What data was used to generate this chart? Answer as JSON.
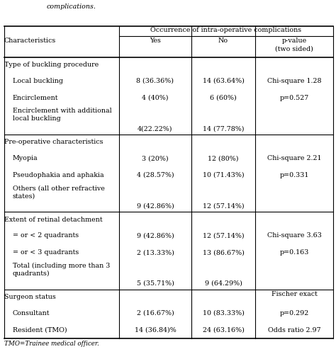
{
  "title_top": "complications.",
  "header1": "Occurrence of intra-operative complications",
  "col_headers_yes": "Yes",
  "col_headers_no": "No",
  "col_headers_pval": "p-value\n(two sided)",
  "row_label_col": "Characteristics",
  "rows": [
    {
      "label": "Type of buckling procedure",
      "indent": 0,
      "yes": "",
      "no": "",
      "pval": "",
      "section_header": true,
      "multiline": false
    },
    {
      "label": "Local buckling",
      "indent": 1,
      "yes": "8 (36.36%)",
      "no": "14 (63.64%)",
      "pval": "Chi-square 1.28",
      "section_header": false,
      "multiline": false
    },
    {
      "label": "Encirclement",
      "indent": 1,
      "yes": "4 (40%)",
      "no": "6 (60%)",
      "pval": "p=0.527",
      "section_header": false,
      "multiline": false
    },
    {
      "label": "Encirclement with additional\nlocal buckling",
      "indent": 1,
      "yes": "4(22.22%)",
      "no": "14 (77.78%)",
      "pval": "",
      "section_header": false,
      "multiline": true
    },
    {
      "label": "Pre-operative characteristics",
      "indent": 0,
      "yes": "",
      "no": "",
      "pval": "",
      "section_header": true,
      "multiline": false
    },
    {
      "label": "Myopia",
      "indent": 1,
      "yes": "3 (20%)",
      "no": "12 (80%)",
      "pval": "Chi-square 2.21",
      "section_header": false,
      "multiline": false
    },
    {
      "label": "Pseudophakia and aphakia",
      "indent": 1,
      "yes": "4 (28.57%)",
      "no": "10 (71.43%)",
      "pval": "p=0.331",
      "section_header": false,
      "multiline": false
    },
    {
      "label": "Others (all other refractive\nstates)",
      "indent": 1,
      "yes": "9 (42.86%)",
      "no": "12 (57.14%)",
      "pval": "",
      "section_header": false,
      "multiline": true
    },
    {
      "label": "Extent of retinal detachment",
      "indent": 0,
      "yes": "",
      "no": "",
      "pval": "",
      "section_header": true,
      "multiline": false
    },
    {
      "label": "= or < 2 quadrants",
      "indent": 1,
      "yes": "9 (42.86%)",
      "no": "12 (57.14%)",
      "pval": "Chi-square 3.63",
      "section_header": false,
      "multiline": false
    },
    {
      "label": "= or < 3 quadrants",
      "indent": 1,
      "yes": "2 (13.33%)",
      "no": "13 (86.67%)",
      "pval": "p=0.163",
      "section_header": false,
      "multiline": false
    },
    {
      "label": "Total (including more than 3\nquadrants)",
      "indent": 1,
      "yes": "5 (35.71%)",
      "no": "9 (64.29%)",
      "pval": "",
      "section_header": false,
      "multiline": true
    },
    {
      "label": "Surgeon status",
      "indent": 0,
      "yes": "",
      "no": "",
      "pval": "Fischer exact",
      "section_header": true,
      "multiline": false
    },
    {
      "label": "Consultant",
      "indent": 1,
      "yes": "2 (16.67%)",
      "no": "10 (83.33%)",
      "pval": "p=0.292",
      "section_header": false,
      "multiline": false
    },
    {
      "label": "Resident (TMO)",
      "indent": 1,
      "yes": "14 (36.84)%",
      "no": "24 (63.16%)",
      "pval": "Odds ratio 2.97",
      "section_header": false,
      "multiline": false
    }
  ],
  "footnote": "TMO=Trainee medical officer.",
  "bg_color": "#ffffff",
  "text_color": "#000000",
  "line_color": "#000000",
  "font_size": 6.8,
  "header_font_size": 6.8
}
